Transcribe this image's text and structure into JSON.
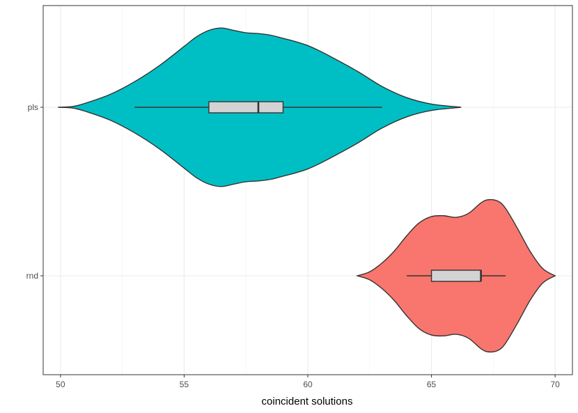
{
  "chart_data": {
    "type": "violin",
    "orientation": "horizontal",
    "title": "",
    "xlabel": "coincident solutions",
    "ylabel": "",
    "xlim": [
      49.3,
      70.7
    ],
    "x_ticks": [
      50,
      55,
      60,
      65,
      70
    ],
    "x_tick_labels": [
      "50",
      "55",
      "60",
      "65",
      "70"
    ],
    "categories": [
      "pls",
      "rnd"
    ],
    "grid": true,
    "legend": "none",
    "series": [
      {
        "name": "pls",
        "fill_color": "#00BFC4",
        "density": [
          [
            49.9,
            0.0
          ],
          [
            50.5,
            0.01
          ],
          [
            51.0,
            0.05
          ],
          [
            52.0,
            0.16
          ],
          [
            53.0,
            0.32
          ],
          [
            54.0,
            0.52
          ],
          [
            55.0,
            0.76
          ],
          [
            55.5,
            0.88
          ],
          [
            56.0,
            0.96
          ],
          [
            56.5,
            0.99
          ],
          [
            57.0,
            0.96
          ],
          [
            57.5,
            0.93
          ],
          [
            58.0,
            0.92
          ],
          [
            58.5,
            0.9
          ],
          [
            59.0,
            0.86
          ],
          [
            59.5,
            0.82
          ],
          [
            60.0,
            0.77
          ],
          [
            60.5,
            0.7
          ],
          [
            61.0,
            0.62
          ],
          [
            62.0,
            0.45
          ],
          [
            63.0,
            0.26
          ],
          [
            64.0,
            0.12
          ],
          [
            65.0,
            0.04
          ],
          [
            66.2,
            0.0
          ]
        ],
        "box": {
          "whisker_low": 53,
          "q1": 56,
          "median": 58,
          "q3": 59,
          "whisker_high": 63
        }
      },
      {
        "name": "rnd",
        "fill_color": "#F8766D",
        "density": [
          [
            62.0,
            0.0
          ],
          [
            62.5,
            0.05
          ],
          [
            63.0,
            0.16
          ],
          [
            63.5,
            0.31
          ],
          [
            64.0,
            0.5
          ],
          [
            64.5,
            0.66
          ],
          [
            65.0,
            0.74
          ],
          [
            65.5,
            0.75
          ],
          [
            66.0,
            0.73
          ],
          [
            66.5,
            0.78
          ],
          [
            67.0,
            0.91
          ],
          [
            67.3,
            0.95
          ],
          [
            67.7,
            0.93
          ],
          [
            68.0,
            0.84
          ],
          [
            68.5,
            0.58
          ],
          [
            69.0,
            0.3
          ],
          [
            69.5,
            0.09
          ],
          [
            70.0,
            0.0
          ]
        ],
        "box": {
          "whisker_low": 64,
          "q1": 65,
          "median": 67,
          "q3": 67,
          "whisker_high": 68
        }
      }
    ]
  }
}
